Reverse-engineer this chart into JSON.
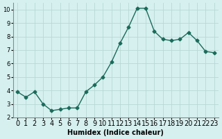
{
  "x": [
    0,
    1,
    2,
    3,
    4,
    5,
    6,
    7,
    8,
    9,
    10,
    11,
    12,
    13,
    14,
    15,
    16,
    17,
    18,
    19,
    20,
    21,
    22,
    23
  ],
  "y": [
    3.9,
    3.5,
    3.9,
    3.0,
    2.5,
    2.6,
    2.7,
    2.7,
    3.9,
    4.4,
    5.0,
    6.1,
    7.5,
    8.7,
    10.1,
    10.1,
    8.4,
    7.8,
    7.7,
    7.8,
    8.3,
    7.7,
    6.9,
    6.8
  ],
  "line_color": "#1a6b5a",
  "marker": "D",
  "marker_size": 2.5,
  "bg_color": "#d6f0ef",
  "grid_color": "#b8d8d5",
  "xlabel": "Humidex (Indice chaleur)",
  "xlim": [
    -0.5,
    23.5
  ],
  "ylim": [
    2,
    10.5
  ],
  "yticks": [
    2,
    3,
    4,
    5,
    6,
    7,
    8,
    9,
    10
  ],
  "xticks": [
    0,
    1,
    2,
    3,
    4,
    5,
    6,
    7,
    8,
    9,
    10,
    11,
    12,
    13,
    14,
    15,
    16,
    17,
    18,
    19,
    20,
    21,
    22,
    23
  ],
  "xlabel_fontsize": 7,
  "tick_fontsize": 6,
  "line_width": 1.0
}
